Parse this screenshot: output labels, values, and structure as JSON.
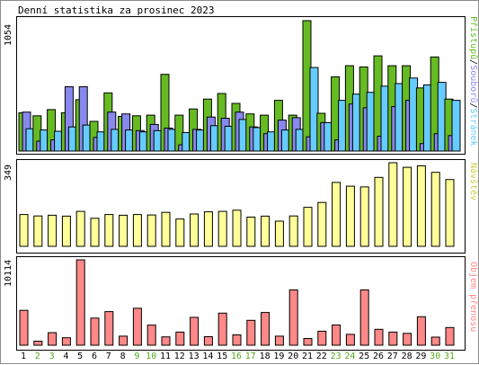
{
  "title": "Denní statistika za prosinec 2023",
  "colors": {
    "pristupu": "#66bb22",
    "souboru": "#8888ee",
    "stranek": "#66ccff",
    "navstev": "#ffff99",
    "objem": "#ff8888",
    "weekend_day": "#55aa22",
    "weekday": "#000000",
    "border": "#000000"
  },
  "panels": {
    "top": {
      "ymax_label": "1054",
      "side_labels": [
        "Přístupů",
        "/",
        "Souborů",
        "/",
        "Stránek"
      ]
    },
    "middle": {
      "ymax_label": "349",
      "side_label": "Návštěv"
    },
    "bottom": {
      "ymax_label": "10114",
      "side_label": "Objem přenosu"
    }
  },
  "chart_data": [
    {
      "type": "bar",
      "panel": "top",
      "categories": [
        "1",
        "2",
        "3",
        "4",
        "5",
        "6",
        "7",
        "8",
        "9",
        "10",
        "11",
        "12",
        "13",
        "14",
        "15",
        "16",
        "17",
        "18",
        "19",
        "20",
        "21",
        "22",
        "23",
        "24",
        "25",
        "26",
        "27",
        "28",
        "29",
        "30",
        "31"
      ],
      "ylim": [
        0,
        1054
      ],
      "series": [
        {
          "name": "Přístupů",
          "values": [
            310,
            285,
            335,
            310,
            415,
            240,
            470,
            280,
            285,
            290,
            620,
            290,
            340,
            420,
            465,
            385,
            300,
            290,
            410,
            290,
            1054,
            305,
            600,
            690,
            680,
            770,
            690,
            690,
            510,
            760,
            420
          ]
        },
        {
          "name": "Souborů",
          "values": [
            315,
            80,
            90,
            520,
            520,
            110,
            315,
            300,
            165,
            215,
            185,
            50,
            175,
            275,
            265,
            315,
            195,
            140,
            250,
            270,
            115,
            230,
            90,
            380,
            350,
            120,
            360,
            410,
            60,
            140,
            125
          ]
        },
        {
          "name": "Stránek",
          "values": [
            180,
            170,
            160,
            195,
            210,
            155,
            175,
            170,
            155,
            165,
            175,
            150,
            170,
            205,
            200,
            255,
            190,
            155,
            170,
            175,
            675,
            230,
            410,
            460,
            475,
            525,
            545,
            590,
            535,
            555,
            410
          ]
        }
      ]
    },
    {
      "type": "bar",
      "panel": "middle",
      "categories": [
        "1",
        "2",
        "3",
        "4",
        "5",
        "6",
        "7",
        "8",
        "9",
        "10",
        "11",
        "12",
        "13",
        "14",
        "15",
        "16",
        "17",
        "18",
        "19",
        "20",
        "21",
        "22",
        "23",
        "24",
        "25",
        "26",
        "27",
        "28",
        "29",
        "30",
        "31"
      ],
      "ylim": [
        0,
        349
      ],
      "series": [
        {
          "name": "Návštěv",
          "values": [
            133,
            127,
            130,
            126,
            146,
            117,
            133,
            130,
            133,
            131,
            142,
            114,
            135,
            144,
            146,
            151,
            122,
            126,
            105,
            127,
            163,
            183,
            267,
            251,
            248,
            288,
            349,
            330,
            336,
            309,
            279
          ]
        }
      ]
    },
    {
      "type": "bar",
      "panel": "bottom",
      "categories": [
        "1",
        "2",
        "3",
        "4",
        "5",
        "6",
        "7",
        "8",
        "9",
        "10",
        "11",
        "12",
        "13",
        "14",
        "15",
        "16",
        "17",
        "18",
        "19",
        "20",
        "21",
        "22",
        "23",
        "24",
        "25",
        "26",
        "27",
        "28",
        "29",
        "30",
        "31"
      ],
      "ylim": [
        0,
        10114
      ],
      "series": [
        {
          "name": "Objem přenosu",
          "values": [
            4130,
            480,
            1490,
            880,
            10114,
            3220,
            3980,
            1080,
            4380,
            2390,
            995,
            1550,
            3300,
            1010,
            3800,
            1220,
            2950,
            3880,
            1080,
            6550,
            800,
            1660,
            2400,
            1290,
            6550,
            1880,
            1550,
            1400,
            3370,
            960,
            2100
          ]
        }
      ]
    }
  ],
  "day_labels": [
    "1",
    "2",
    "3",
    "4",
    "5",
    "6",
    "7",
    "8",
    "9",
    "10",
    "11",
    "12",
    "13",
    "14",
    "15",
    "16",
    "17",
    "18",
    "19",
    "20",
    "21",
    "22",
    "23",
    "24",
    "25",
    "26",
    "27",
    "28",
    "29",
    "30",
    "31"
  ],
  "weekend_days": [
    "2",
    "3",
    "9",
    "10",
    "16",
    "17",
    "23",
    "24",
    "30",
    "31"
  ]
}
